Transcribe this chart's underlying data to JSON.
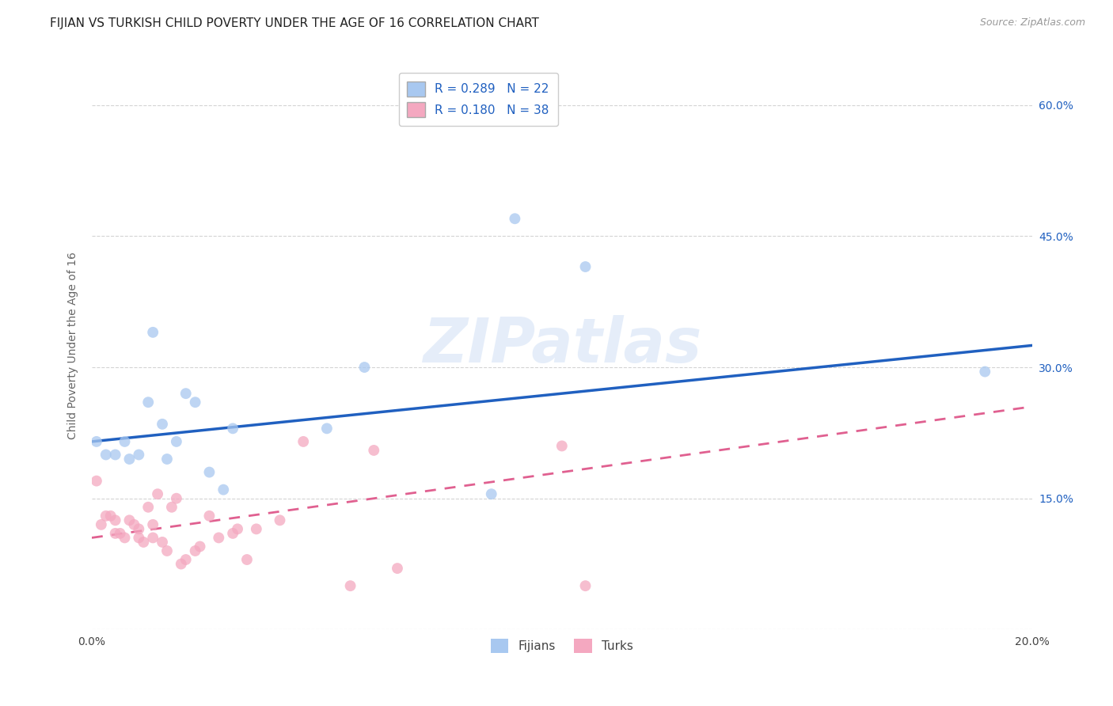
{
  "title": "FIJIAN VS TURKISH CHILD POVERTY UNDER THE AGE OF 16 CORRELATION CHART",
  "source": "Source: ZipAtlas.com",
  "ylabel": "Child Poverty Under the Age of 16",
  "xlim": [
    0.0,
    0.2
  ],
  "ylim": [
    0.0,
    0.65
  ],
  "xtick_vals": [
    0.0,
    0.05,
    0.1,
    0.15,
    0.2
  ],
  "xtick_labels": [
    "0.0%",
    "",
    "",
    "",
    "20.0%"
  ],
  "ytick_vals": [
    0.0,
    0.15,
    0.3,
    0.45,
    0.6
  ],
  "ytick_labels": [
    "",
    "15.0%",
    "30.0%",
    "45.0%",
    "60.0%"
  ],
  "fijian_color": "#a8c8f0",
  "turkish_color": "#f4a8c0",
  "fijian_line_color": "#2060c0",
  "turkish_line_color": "#e06090",
  "fijian_R": 0.289,
  "fijian_N": 22,
  "turkish_R": 0.18,
  "turkish_N": 38,
  "watermark": "ZIPatlas",
  "fijian_x": [
    0.001,
    0.003,
    0.005,
    0.007,
    0.008,
    0.01,
    0.012,
    0.013,
    0.015,
    0.016,
    0.018,
    0.02,
    0.022,
    0.025,
    0.028,
    0.03,
    0.05,
    0.058,
    0.085,
    0.09,
    0.105,
    0.19
  ],
  "fijian_y": [
    0.215,
    0.2,
    0.2,
    0.215,
    0.195,
    0.2,
    0.26,
    0.34,
    0.235,
    0.195,
    0.215,
    0.27,
    0.26,
    0.18,
    0.16,
    0.23,
    0.23,
    0.3,
    0.155,
    0.47,
    0.415,
    0.295
  ],
  "turkish_x": [
    0.001,
    0.002,
    0.003,
    0.004,
    0.005,
    0.005,
    0.006,
    0.007,
    0.008,
    0.009,
    0.01,
    0.01,
    0.011,
    0.012,
    0.013,
    0.013,
    0.014,
    0.015,
    0.016,
    0.017,
    0.018,
    0.019,
    0.02,
    0.022,
    0.023,
    0.025,
    0.027,
    0.03,
    0.031,
    0.033,
    0.035,
    0.04,
    0.045,
    0.055,
    0.06,
    0.065,
    0.1,
    0.105
  ],
  "turkish_y": [
    0.17,
    0.12,
    0.13,
    0.13,
    0.125,
    0.11,
    0.11,
    0.105,
    0.125,
    0.12,
    0.115,
    0.105,
    0.1,
    0.14,
    0.12,
    0.105,
    0.155,
    0.1,
    0.09,
    0.14,
    0.15,
    0.075,
    0.08,
    0.09,
    0.095,
    0.13,
    0.105,
    0.11,
    0.115,
    0.08,
    0.115,
    0.125,
    0.215,
    0.05,
    0.205,
    0.07,
    0.21,
    0.05
  ],
  "background_color": "#ffffff",
  "grid_color": "#d0d0d0",
  "title_fontsize": 11,
  "label_fontsize": 10,
  "tick_fontsize": 10,
  "legend_fontsize": 11,
  "marker_size": 100,
  "marker_alpha": 0.75,
  "fij_line_x0": 0.0,
  "fij_line_x1": 0.2,
  "fij_line_y0": 0.215,
  "fij_line_y1": 0.325,
  "tur_line_x0": 0.0,
  "tur_line_x1": 0.2,
  "tur_line_y0": 0.105,
  "tur_line_y1": 0.255
}
